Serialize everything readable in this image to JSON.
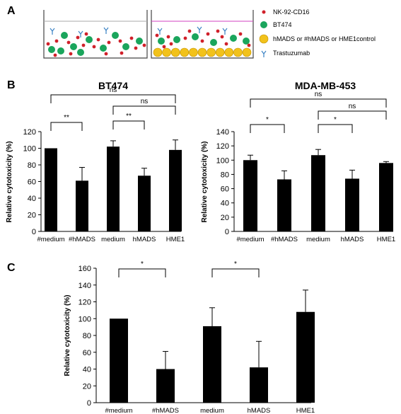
{
  "panel_labels": {
    "a": "A",
    "b": "B",
    "c": "C"
  },
  "legend": [
    {
      "label": "NK-92-CD16",
      "icon": "red-dot-icon",
      "color": "#d0202a"
    },
    {
      "label": "BT474",
      "icon": "green-circle-icon",
      "color": "#1aa55c"
    },
    {
      "label": "hMADS or #hMADS or HME1control",
      "icon": "yellow-circle-icon",
      "color": "#f2c21b"
    },
    {
      "label": "Trastuzumab",
      "icon": "antibody-y-icon",
      "color": "#3a82c4"
    }
  ],
  "chart_data": [
    {
      "type": "bar",
      "title": "BT474",
      "ylabel": "Relative cytotoxicity (%)",
      "categories": [
        "#medium",
        "#hMADS",
        "medium",
        "hMADS",
        "HME1"
      ],
      "values": [
        100,
        61,
        102,
        67,
        98
      ],
      "errors": [
        0.5,
        16,
        7,
        9,
        12
      ],
      "ylim": [
        0,
        120
      ],
      "yticks": [
        0,
        20,
        40,
        60,
        80,
        100,
        120
      ],
      "bar_color": "#000000",
      "grid": false,
      "significance": [
        {
          "from": 0,
          "to": 1,
          "label": "**"
        },
        {
          "from": 2,
          "to": 3,
          "label": "**"
        },
        {
          "from": 2,
          "to": 4,
          "label": "ns"
        },
        {
          "from": 0,
          "to": 4,
          "label": "ns"
        }
      ]
    },
    {
      "type": "bar",
      "title": "MDA-MB-453",
      "ylabel": "Relative cytotoxicity (%)",
      "categories": [
        "#medium",
        "#hMADS",
        "medium",
        "hMADS",
        "HME1"
      ],
      "values": [
        100,
        73,
        107,
        74,
        96
      ],
      "errors": [
        7,
        12,
        8,
        12,
        2
      ],
      "ylim": [
        0,
        140
      ],
      "yticks": [
        0,
        20,
        40,
        60,
        80,
        100,
        120,
        140
      ],
      "bar_color": "#000000",
      "grid": false,
      "significance": [
        {
          "from": 0,
          "to": 1,
          "label": "*"
        },
        {
          "from": 2,
          "to": 3,
          "label": "*"
        },
        {
          "from": 2,
          "to": 4,
          "label": "ns"
        },
        {
          "from": 0,
          "to": 4,
          "label": "ns"
        }
      ]
    },
    {
      "type": "bar",
      "title": "",
      "ylabel": "Relative cytotoxicity (%)",
      "categories": [
        "#medium",
        "#hMADS",
        "medium",
        "hMADS",
        "HME1"
      ],
      "values": [
        100,
        40,
        91,
        42,
        108
      ],
      "errors": [
        0.5,
        21,
        22,
        31,
        26
      ],
      "ylim": [
        0,
        160
      ],
      "yticks": [
        0,
        20,
        40,
        60,
        80,
        100,
        120,
        140,
        160
      ],
      "bar_color": "#000000",
      "grid": false,
      "significance": [
        {
          "from": 0,
          "to": 1,
          "label": "*"
        },
        {
          "from": 2,
          "to": 3,
          "label": "*"
        }
      ]
    }
  ]
}
